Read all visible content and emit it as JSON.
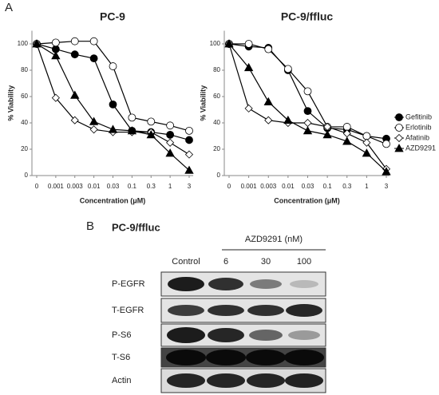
{
  "panel_labels": [
    "A",
    "B"
  ],
  "chart_data": [
    {
      "type": "line",
      "title": "PC-9",
      "y_label": "% Viability",
      "x_label": "Concentration (μM)",
      "categories": [
        "0",
        "0.001",
        "0.003",
        "0.01",
        "0.03",
        "0.1",
        "0.3",
        "1",
        "3"
      ],
      "ylim": [
        0,
        110
      ],
      "yticks": [
        0,
        20,
        40,
        60,
        80,
        100
      ],
      "legend": false,
      "series": [
        {
          "name": "Gefitinib",
          "color": "#000000",
          "marker": "circle",
          "marker_fill": "#000000",
          "values": [
            100,
            96,
            92,
            89,
            54,
            34,
            33,
            31,
            27
          ]
        },
        {
          "name": "Erlotinib",
          "color": "#000000",
          "marker": "circle",
          "marker_fill": "#ffffff",
          "values": [
            100,
            101,
            102,
            102,
            83,
            44,
            41,
            38,
            34
          ]
        },
        {
          "name": "Afatinib",
          "color": "#000000",
          "marker": "diamond",
          "marker_fill": "#ffffff",
          "values": [
            100,
            59,
            42,
            35,
            33,
            33,
            33,
            25,
            16
          ]
        },
        {
          "name": "AZD9291",
          "color": "#000000",
          "marker": "triangle",
          "marker_fill": "#000000",
          "values": [
            100,
            91,
            61,
            41,
            35,
            34,
            31,
            17,
            4
          ]
        }
      ]
    },
    {
      "type": "line",
      "title": "PC-9/ffluc",
      "y_label": "% Viability",
      "x_label": "Concentration (μM)",
      "categories": [
        "0",
        "0.001",
        "0.003",
        "0.01",
        "0.03",
        "0.1",
        "0.3",
        "1",
        "3"
      ],
      "ylim": [
        0,
        110
      ],
      "yticks": [
        0,
        20,
        40,
        60,
        80,
        100
      ],
      "legend": "right",
      "series": [
        {
          "name": "Gefitinib",
          "color": "#000000",
          "marker": "circle",
          "marker_fill": "#000000",
          "values": [
            100,
            98,
            97,
            80,
            49,
            36,
            35,
            30,
            28
          ]
        },
        {
          "name": "Erlotinib",
          "color": "#000000",
          "marker": "circle",
          "marker_fill": "#ffffff",
          "values": [
            100,
            100,
            96,
            81,
            64,
            37,
            37,
            30,
            24
          ]
        },
        {
          "name": "Afatinib",
          "color": "#000000",
          "marker": "diamond",
          "marker_fill": "#ffffff",
          "values": [
            100,
            51,
            42,
            40,
            40,
            37,
            32,
            25,
            5
          ]
        },
        {
          "name": "AZD9291",
          "color": "#000000",
          "marker": "triangle",
          "marker_fill": "#000000",
          "values": [
            100,
            82,
            56,
            42,
            34,
            31,
            26,
            17,
            3
          ]
        }
      ]
    }
  ],
  "blot": {
    "title": "PC-9/ffluc",
    "treatment": "AZD9291 (nM)",
    "lanes": [
      "Control",
      "6",
      "30",
      "100"
    ],
    "rows": [
      "P-EGFR",
      "T-EGFR",
      "P-S6",
      "T-S6",
      "Actin"
    ]
  }
}
